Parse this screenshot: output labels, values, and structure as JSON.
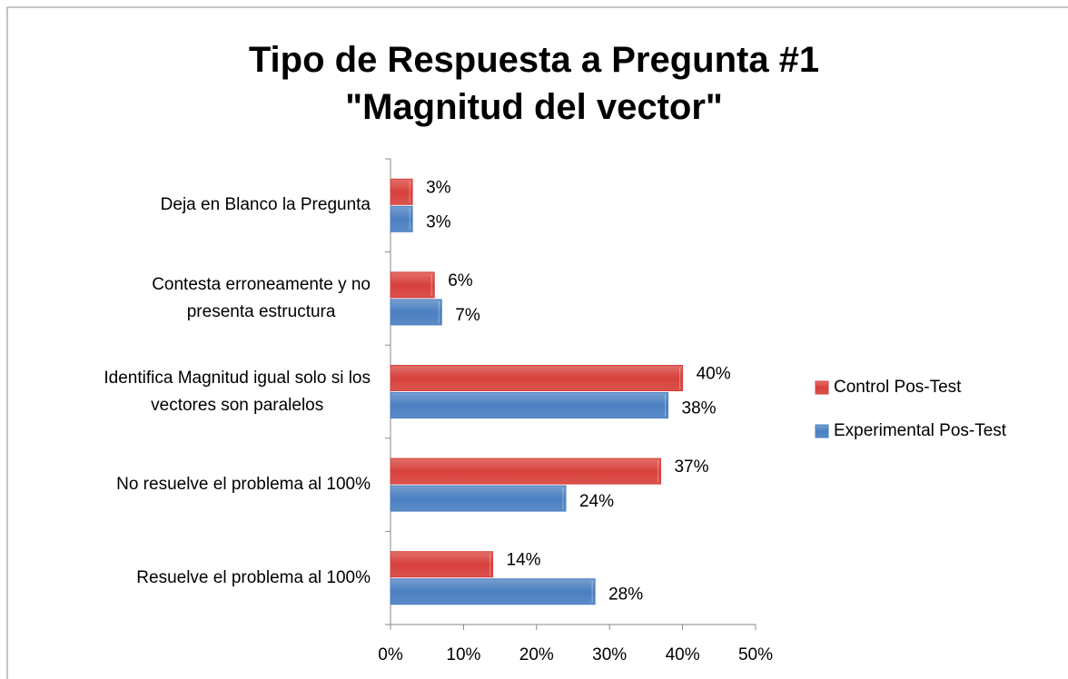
{
  "chart_data": {
    "type": "barh",
    "title": "Tipo de Respuesta a Pregunta #1\n\"Magnitud del vector\"",
    "categories": [
      "Deja en Blanco la Pregunta",
      "Contesta erroneamente y no\npresenta estructura",
      "Identifica Magnitud igual solo si los\nvectores son paralelos",
      "No resuelve el problema al 100%",
      "Resuelve el problema al 100%"
    ],
    "series": [
      {
        "name": "Control Pos-Test",
        "color": "#d7403b",
        "values": [
          3,
          6,
          40,
          37,
          14
        ],
        "value_labels": [
          "3%",
          "6%",
          "40%",
          "37%",
          "14%"
        ]
      },
      {
        "name": "Experimental Pos-Test",
        "color": "#4a7fc1",
        "values": [
          3,
          7,
          38,
          24,
          28
        ],
        "value_labels": [
          "3%",
          "7%",
          "38%",
          "24%",
          "28%"
        ]
      }
    ],
    "xlim": [
      0,
      50
    ],
    "xticks": [
      {
        "value": 0,
        "label": "0%"
      },
      {
        "value": 10,
        "label": "10%"
      },
      {
        "value": 20,
        "label": "20%"
      },
      {
        "value": 30,
        "label": "30%"
      },
      {
        "value": 40,
        "label": "40%"
      },
      {
        "value": 50,
        "label": "50%"
      }
    ],
    "legend": "right"
  }
}
